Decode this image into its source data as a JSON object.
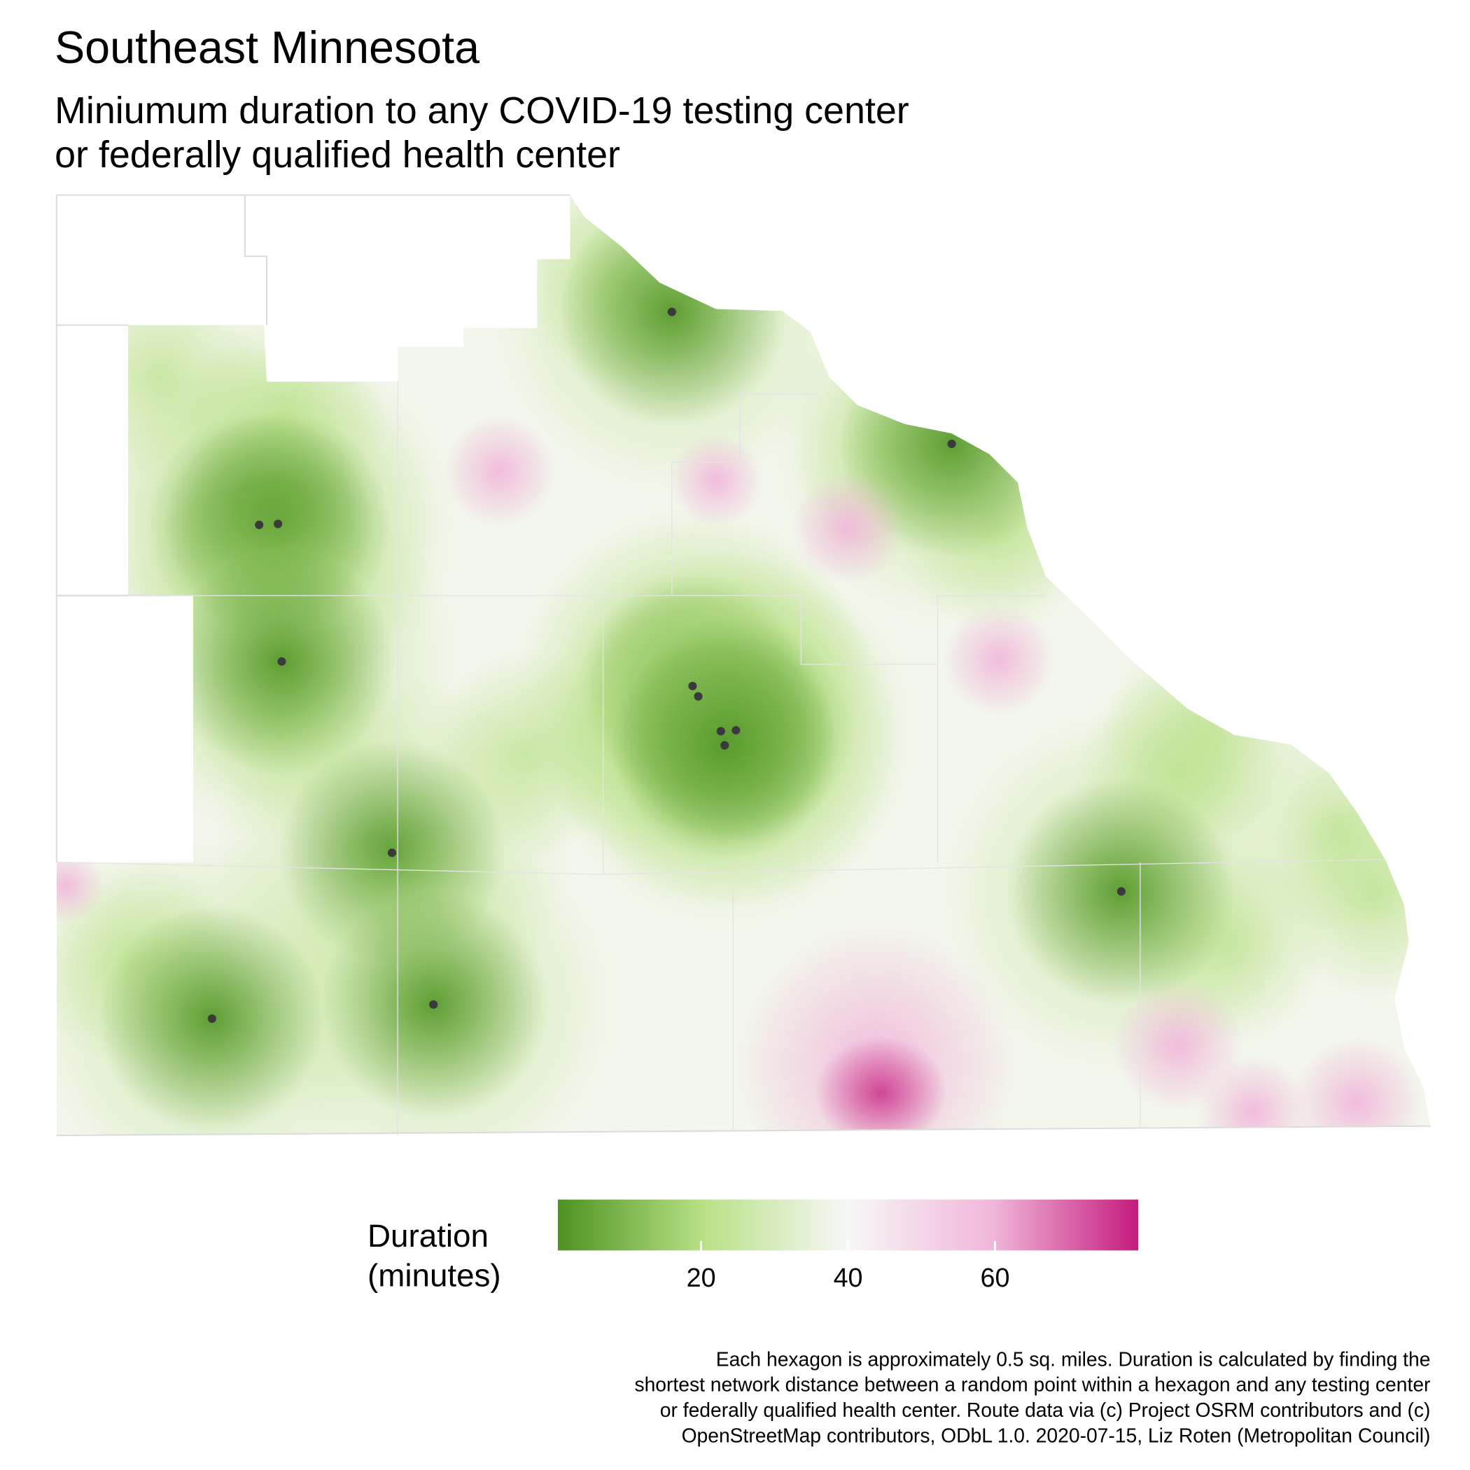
{
  "map": {
    "title": "Southeast Minnesota",
    "subtitle": [
      "Miniumum duration to any COVID-19 testing center",
      "or federally qualified health center"
    ],
    "legend": {
      "title": [
        "Duration",
        "(minutes)"
      ],
      "limits": [
        0.5,
        79.5
      ],
      "ticks": [
        20,
        40,
        60
      ],
      "colors": [
        "#4d9221",
        "#b8e186",
        "#f7f7f7",
        "#f1b6da",
        "#c51b7d"
      ]
    },
    "caption": [
      "Each hexagon is approximately 0.5 sq. miles. Duration is calculated by finding the",
      "shortest network distance between a random point within a hexagon and any testing center",
      "or federally qualified health center. Route data via (c) Project OSRM contributors and (c)",
      "OpenStreetMap contributors, ODbL 1.0. 2020-07-15, Liz Roten (Metropolitan Council)"
    ]
  }
}
